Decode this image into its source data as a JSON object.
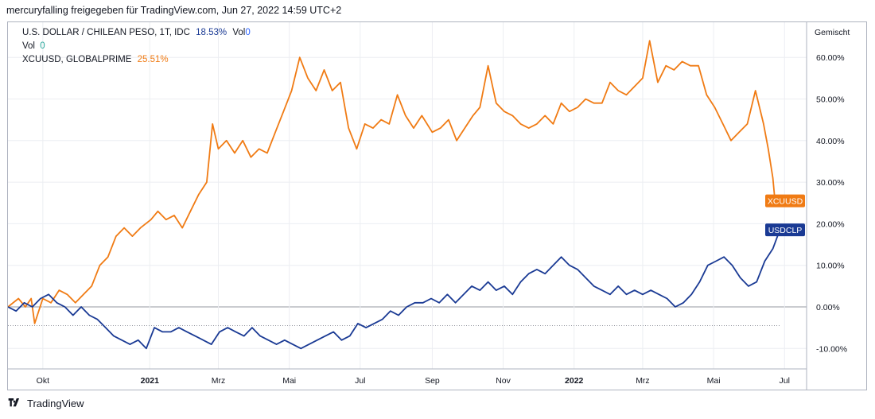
{
  "header": {
    "text": "mercuryfalling freigegeben für TradingView.com, Jun 27, 2022 14:59 UTC+2"
  },
  "legend": {
    "line1_name": "U.S. DOLLAR / CHILEAN PESO, 1T, IDC",
    "line1_value": "18.53%",
    "line1_vol_label": "Vol",
    "line1_vol_value": "0",
    "line2_label": "Vol",
    "line2_value": "0",
    "line3_name": "XCUUSD, GLOBALPRIME",
    "line3_value": "25.51%"
  },
  "scale_label": "Gemischt",
  "footer": {
    "brand": "TradingView"
  },
  "colors": {
    "usdclp": "#1a3a94",
    "xcuusd": "#f07b14",
    "grid": "#eceef2",
    "text": "#131722",
    "value_blue": "#2962ff"
  },
  "chart_data": {
    "type": "line",
    "ylim": [
      -15,
      67
    ],
    "y_ticks": [
      60,
      50,
      40,
      30,
      20,
      10,
      0,
      -10
    ],
    "y_tick_labels": [
      "60.00%",
      "50.00%",
      "40.00%",
      "30.00%",
      "20.00%",
      "10.00%",
      "0.00%",
      "-10.00%"
    ],
    "x_range": [
      "2020-09-01",
      "2022-07-20"
    ],
    "x_ticks": [
      {
        "date": "2020-10-01",
        "label": "Okt",
        "bold": false
      },
      {
        "date": "2021-01-01",
        "label": "2021",
        "bold": true
      },
      {
        "date": "2021-03-01",
        "label": "Mrz",
        "bold": false
      },
      {
        "date": "2021-05-01",
        "label": "Mai",
        "bold": false
      },
      {
        "date": "2021-07-01",
        "label": "Jul",
        "bold": false
      },
      {
        "date": "2021-09-01",
        "label": "Sep",
        "bold": false
      },
      {
        "date": "2021-11-01",
        "label": "Nov",
        "bold": false
      },
      {
        "date": "2022-01-01",
        "label": "2022",
        "bold": true
      },
      {
        "date": "2022-03-01",
        "label": "Mrz",
        "bold": false
      },
      {
        "date": "2022-05-01",
        "label": "Mai",
        "bold": false
      },
      {
        "date": "2022-07-01",
        "label": "Jul",
        "bold": false
      }
    ],
    "series": [
      {
        "name": "XCUUSD",
        "badge": "XCUUSD",
        "color": "#f07b14",
        "points": [
          [
            "2020-09-01",
            0
          ],
          [
            "2020-09-10",
            2
          ],
          [
            "2020-09-16",
            0
          ],
          [
            "2020-09-21",
            2
          ],
          [
            "2020-09-24",
            -4
          ],
          [
            "2020-10-01",
            2
          ],
          [
            "2020-10-08",
            1
          ],
          [
            "2020-10-15",
            4
          ],
          [
            "2020-10-22",
            3
          ],
          [
            "2020-10-29",
            1
          ],
          [
            "2020-11-05",
            3
          ],
          [
            "2020-11-12",
            5
          ],
          [
            "2020-11-19",
            10
          ],
          [
            "2020-11-26",
            12
          ],
          [
            "2020-12-03",
            17
          ],
          [
            "2020-12-10",
            19
          ],
          [
            "2020-12-17",
            17
          ],
          [
            "2020-12-24",
            19
          ],
          [
            "2021-01-02",
            21
          ],
          [
            "2021-01-08",
            23
          ],
          [
            "2021-01-15",
            21
          ],
          [
            "2021-01-22",
            22
          ],
          [
            "2021-01-29",
            19
          ],
          [
            "2021-02-05",
            23
          ],
          [
            "2021-02-12",
            27
          ],
          [
            "2021-02-19",
            30
          ],
          [
            "2021-02-24",
            44
          ],
          [
            "2021-03-01",
            38
          ],
          [
            "2021-03-08",
            40
          ],
          [
            "2021-03-15",
            37
          ],
          [
            "2021-03-22",
            40
          ],
          [
            "2021-03-29",
            36
          ],
          [
            "2021-04-05",
            38
          ],
          [
            "2021-04-12",
            37
          ],
          [
            "2021-04-19",
            42
          ],
          [
            "2021-04-26",
            47
          ],
          [
            "2021-05-03",
            52
          ],
          [
            "2021-05-10",
            60
          ],
          [
            "2021-05-17",
            55
          ],
          [
            "2021-05-24",
            52
          ],
          [
            "2021-05-31",
            57
          ],
          [
            "2021-06-07",
            52
          ],
          [
            "2021-06-14",
            54
          ],
          [
            "2021-06-21",
            43
          ],
          [
            "2021-06-28",
            38
          ],
          [
            "2021-07-05",
            44
          ],
          [
            "2021-07-12",
            43
          ],
          [
            "2021-07-19",
            45
          ],
          [
            "2021-07-26",
            44
          ],
          [
            "2021-08-02",
            51
          ],
          [
            "2021-08-09",
            46
          ],
          [
            "2021-08-16",
            43
          ],
          [
            "2021-08-23",
            46
          ],
          [
            "2021-09-01",
            42
          ],
          [
            "2021-09-08",
            43
          ],
          [
            "2021-09-15",
            45
          ],
          [
            "2021-09-22",
            40
          ],
          [
            "2021-09-29",
            43
          ],
          [
            "2021-10-06",
            46
          ],
          [
            "2021-10-12",
            48
          ],
          [
            "2021-10-19",
            58
          ],
          [
            "2021-10-26",
            49
          ],
          [
            "2021-11-02",
            47
          ],
          [
            "2021-11-09",
            46
          ],
          [
            "2021-11-16",
            44
          ],
          [
            "2021-11-23",
            43
          ],
          [
            "2021-11-30",
            44
          ],
          [
            "2021-12-07",
            46
          ],
          [
            "2021-12-14",
            44
          ],
          [
            "2021-12-21",
            49
          ],
          [
            "2021-12-28",
            47
          ],
          [
            "2022-01-04",
            48
          ],
          [
            "2022-01-11",
            50
          ],
          [
            "2022-01-18",
            49
          ],
          [
            "2022-01-25",
            49
          ],
          [
            "2022-02-01",
            54
          ],
          [
            "2022-02-08",
            52
          ],
          [
            "2022-02-15",
            51
          ],
          [
            "2022-02-22",
            53
          ],
          [
            "2022-03-01",
            55
          ],
          [
            "2022-03-07",
            64
          ],
          [
            "2022-03-14",
            54
          ],
          [
            "2022-03-21",
            58
          ],
          [
            "2022-03-28",
            57
          ],
          [
            "2022-04-04",
            59
          ],
          [
            "2022-04-11",
            58
          ],
          [
            "2022-04-18",
            58
          ],
          [
            "2022-04-25",
            51
          ],
          [
            "2022-05-02",
            48
          ],
          [
            "2022-05-09",
            44
          ],
          [
            "2022-05-16",
            40
          ],
          [
            "2022-05-23",
            42
          ],
          [
            "2022-05-30",
            44
          ],
          [
            "2022-06-06",
            52
          ],
          [
            "2022-06-13",
            44
          ],
          [
            "2022-06-17",
            38
          ],
          [
            "2022-06-21",
            31
          ],
          [
            "2022-06-23",
            25
          ],
          [
            "2022-06-27",
            25.5
          ]
        ]
      },
      {
        "name": "USDCLP",
        "badge": "USDCLP",
        "color": "#1a3a94",
        "points": [
          [
            "2020-09-01",
            0
          ],
          [
            "2020-09-08",
            -1
          ],
          [
            "2020-09-15",
            1
          ],
          [
            "2020-09-22",
            0
          ],
          [
            "2020-09-29",
            2
          ],
          [
            "2020-10-06",
            3
          ],
          [
            "2020-10-13",
            1
          ],
          [
            "2020-10-20",
            0
          ],
          [
            "2020-10-27",
            -2
          ],
          [
            "2020-11-03",
            0
          ],
          [
            "2020-11-10",
            -2
          ],
          [
            "2020-11-17",
            -3
          ],
          [
            "2020-11-24",
            -5
          ],
          [
            "2020-12-01",
            -7
          ],
          [
            "2020-12-08",
            -8
          ],
          [
            "2020-12-15",
            -9
          ],
          [
            "2020-12-22",
            -8
          ],
          [
            "2020-12-29",
            -10
          ],
          [
            "2021-01-05",
            -5
          ],
          [
            "2021-01-12",
            -6
          ],
          [
            "2021-01-19",
            -6
          ],
          [
            "2021-01-26",
            -5
          ],
          [
            "2021-02-02",
            -6
          ],
          [
            "2021-02-09",
            -7
          ],
          [
            "2021-02-16",
            -8
          ],
          [
            "2021-02-23",
            -9
          ],
          [
            "2021-03-02",
            -6
          ],
          [
            "2021-03-09",
            -5
          ],
          [
            "2021-03-16",
            -6
          ],
          [
            "2021-03-23",
            -7
          ],
          [
            "2021-03-30",
            -5
          ],
          [
            "2021-04-06",
            -7
          ],
          [
            "2021-04-13",
            -8
          ],
          [
            "2021-04-20",
            -9
          ],
          [
            "2021-04-27",
            -8
          ],
          [
            "2021-05-04",
            -9
          ],
          [
            "2021-05-11",
            -10
          ],
          [
            "2021-05-18",
            -9
          ],
          [
            "2021-05-25",
            -8
          ],
          [
            "2021-06-01",
            -7
          ],
          [
            "2021-06-08",
            -6
          ],
          [
            "2021-06-15",
            -8
          ],
          [
            "2021-06-22",
            -7
          ],
          [
            "2021-06-29",
            -4
          ],
          [
            "2021-07-06",
            -5
          ],
          [
            "2021-07-13",
            -4
          ],
          [
            "2021-07-20",
            -3
          ],
          [
            "2021-07-27",
            -1
          ],
          [
            "2021-08-03",
            -2
          ],
          [
            "2021-08-10",
            0
          ],
          [
            "2021-08-17",
            1
          ],
          [
            "2021-08-24",
            1
          ],
          [
            "2021-08-31",
            2
          ],
          [
            "2021-09-07",
            1
          ],
          [
            "2021-09-14",
            3
          ],
          [
            "2021-09-21",
            1
          ],
          [
            "2021-09-28",
            3
          ],
          [
            "2021-10-05",
            5
          ],
          [
            "2021-10-12",
            4
          ],
          [
            "2021-10-19",
            6
          ],
          [
            "2021-10-26",
            4
          ],
          [
            "2021-11-02",
            5
          ],
          [
            "2021-11-09",
            3
          ],
          [
            "2021-11-16",
            6
          ],
          [
            "2021-11-23",
            8
          ],
          [
            "2021-11-30",
            9
          ],
          [
            "2021-12-07",
            8
          ],
          [
            "2021-12-14",
            10
          ],
          [
            "2021-12-21",
            12
          ],
          [
            "2021-12-28",
            10
          ],
          [
            "2022-01-04",
            9
          ],
          [
            "2022-01-11",
            7
          ],
          [
            "2022-01-18",
            5
          ],
          [
            "2022-01-25",
            4
          ],
          [
            "2022-02-01",
            3
          ],
          [
            "2022-02-08",
            5
          ],
          [
            "2022-02-15",
            3
          ],
          [
            "2022-02-22",
            4
          ],
          [
            "2022-03-01",
            3
          ],
          [
            "2022-03-08",
            4
          ],
          [
            "2022-03-15",
            3
          ],
          [
            "2022-03-22",
            2
          ],
          [
            "2022-03-29",
            0
          ],
          [
            "2022-04-05",
            1
          ],
          [
            "2022-04-12",
            3
          ],
          [
            "2022-04-19",
            6
          ],
          [
            "2022-04-26",
            10
          ],
          [
            "2022-05-03",
            11
          ],
          [
            "2022-05-10",
            12
          ],
          [
            "2022-05-17",
            10
          ],
          [
            "2022-05-24",
            7
          ],
          [
            "2022-05-31",
            5
          ],
          [
            "2022-06-07",
            6
          ],
          [
            "2022-06-14",
            11
          ],
          [
            "2022-06-21",
            14
          ],
          [
            "2022-06-27",
            18.53
          ]
        ]
      }
    ],
    "dotted_reference": -4.5
  }
}
